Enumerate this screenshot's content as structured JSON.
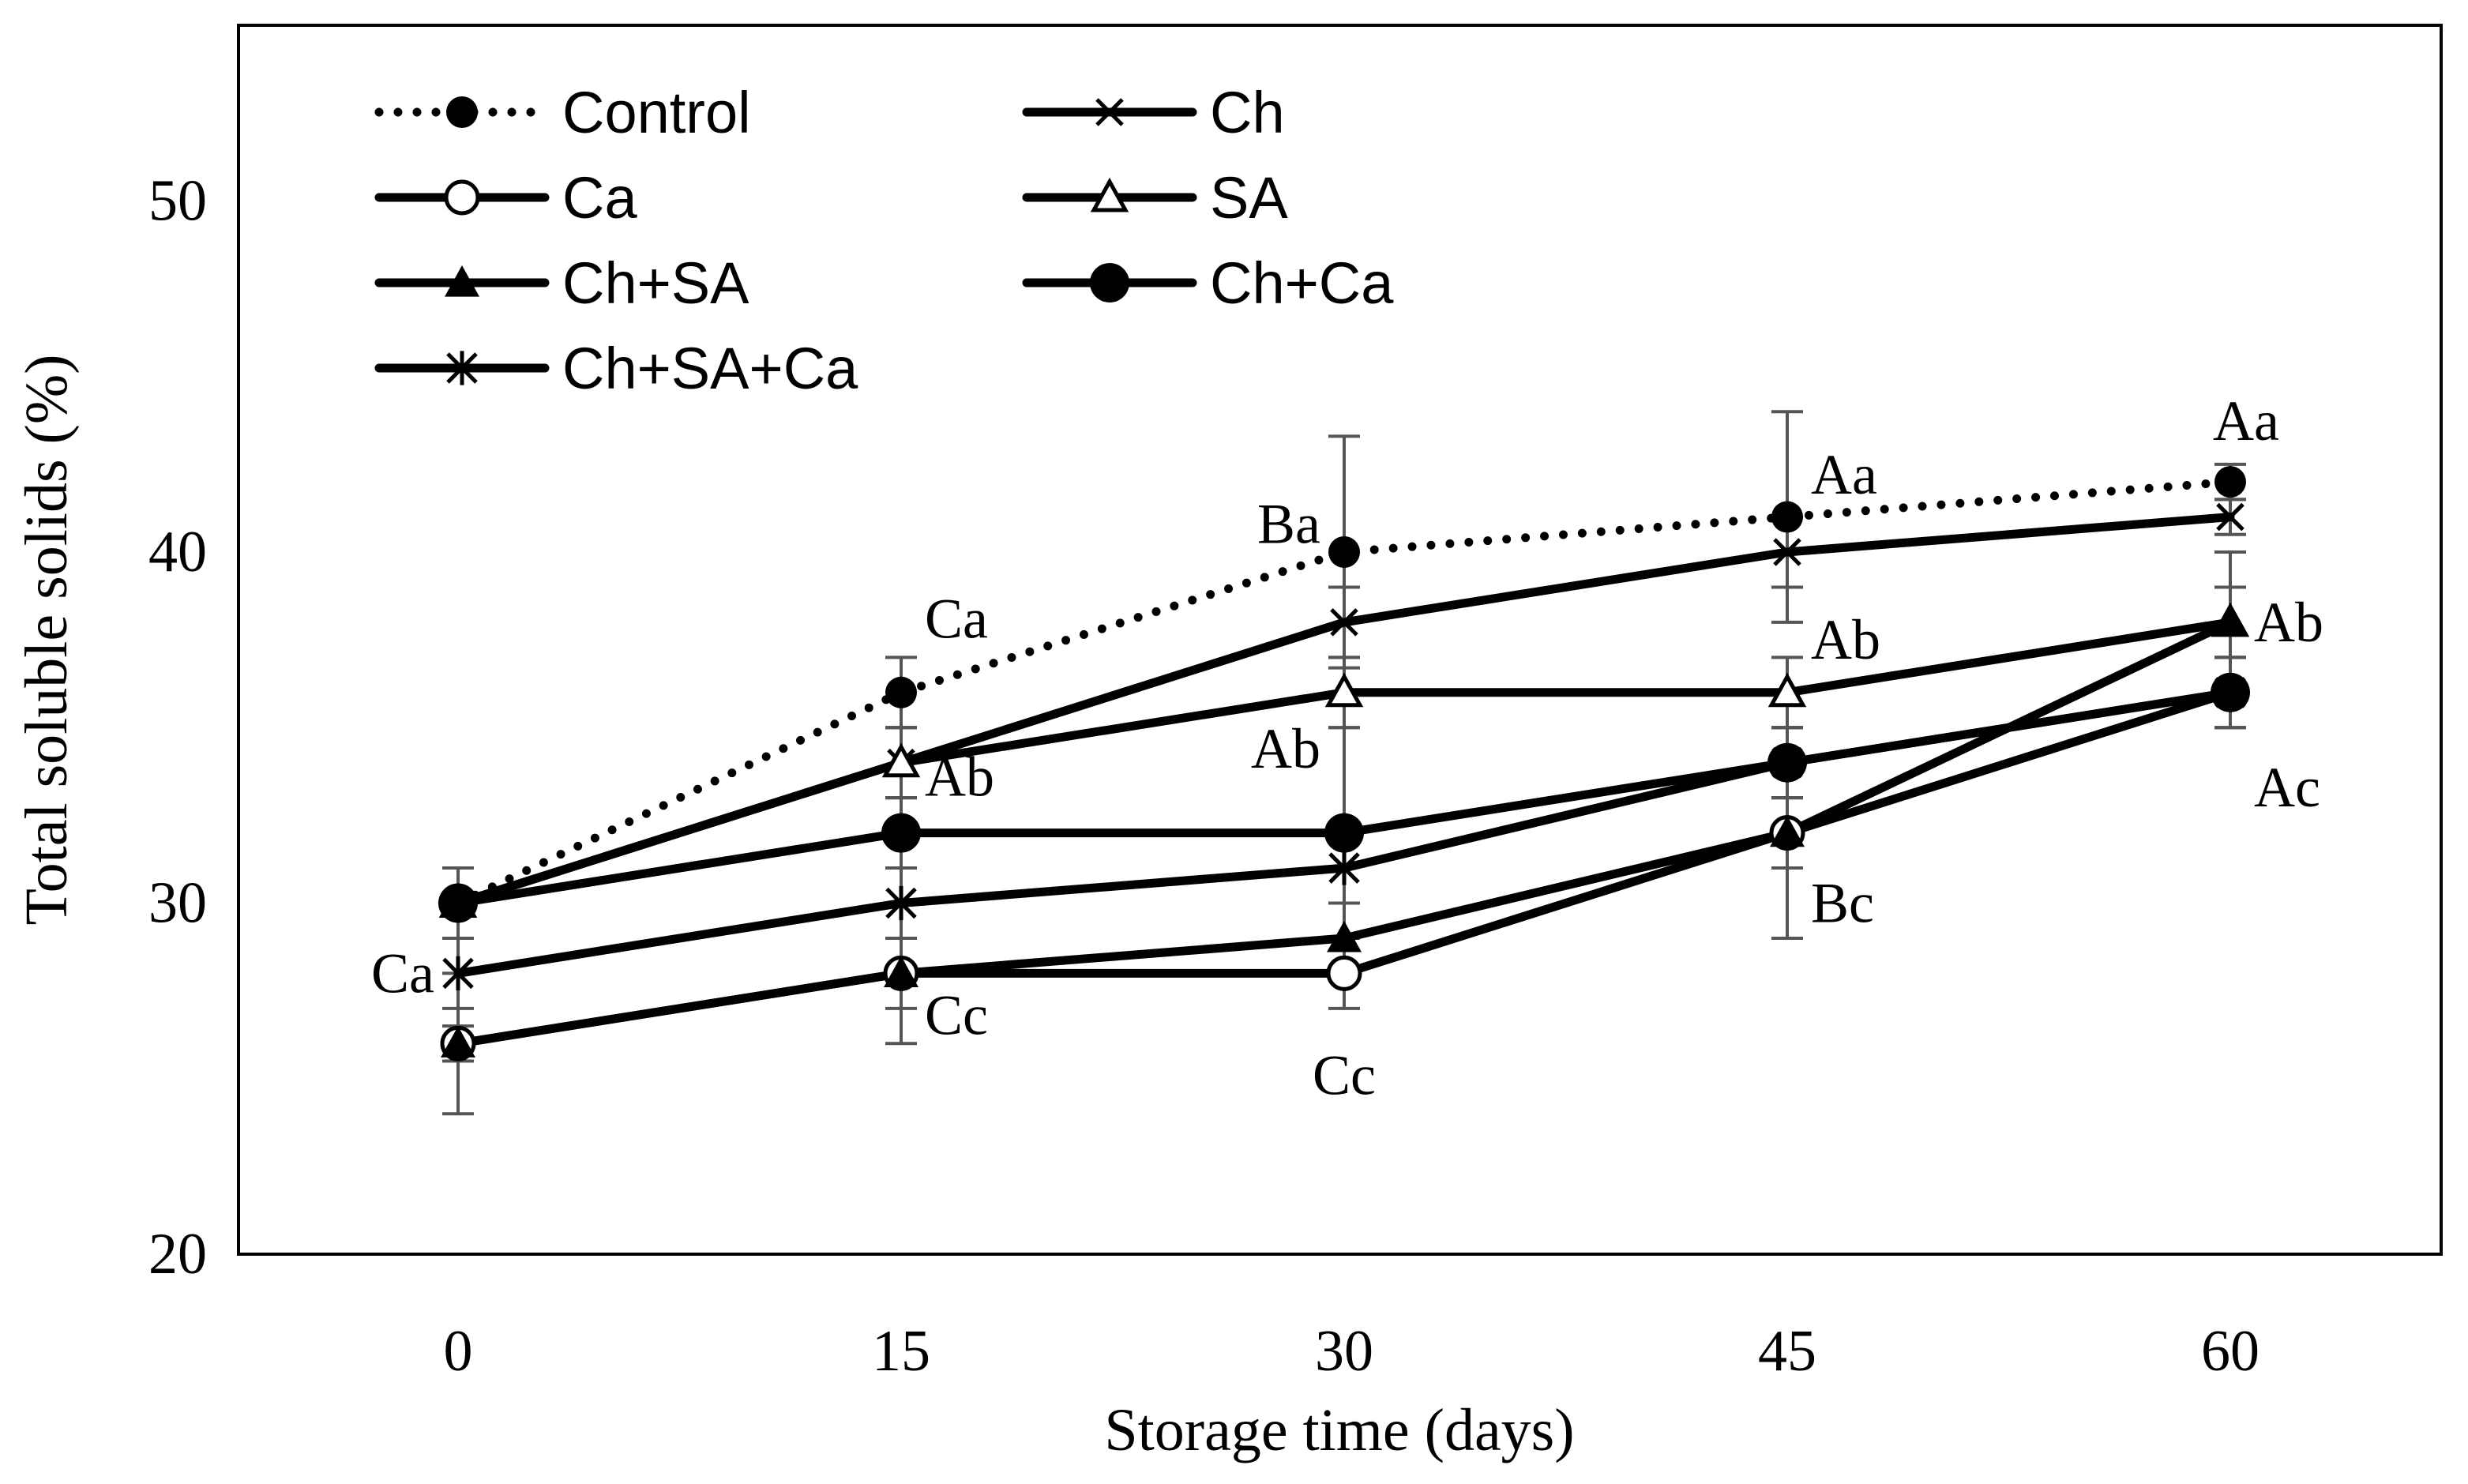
{
  "chart_data": {
    "type": "line",
    "title": "",
    "xlabel": "Storage time (days)",
    "ylabel": "Total soluble solids (%)",
    "x": [
      0,
      15,
      30,
      45,
      60
    ],
    "xticks": [
      "0",
      "15",
      "30",
      "45",
      "60"
    ],
    "ylim": [
      20,
      55
    ],
    "yticks": [
      20,
      30,
      40,
      50
    ],
    "ytick_labels": [
      "20",
      "30",
      "40",
      "50"
    ],
    "grid": false,
    "legend_position": "top-left",
    "series": [
      {
        "name": "Control",
        "values": [
          30,
          36,
          40,
          41,
          42
        ],
        "marker": "circle-filled-small",
        "line": "dotted",
        "errors": [
          1,
          1,
          3.3,
          3,
          0.5
        ]
      },
      {
        "name": "Ch",
        "values": [
          30,
          34,
          38,
          40,
          41
        ],
        "marker": "x",
        "line": "solid",
        "errors": [
          1,
          1,
          1,
          1,
          0.5
        ]
      },
      {
        "name": "Ca",
        "values": [
          26,
          28,
          28,
          32,
          36
        ],
        "marker": "circle-open",
        "line": "solid",
        "errors": [
          0.5,
          1,
          1,
          1,
          1
        ]
      },
      {
        "name": "SA",
        "values": [
          30,
          34,
          36,
          36,
          38
        ],
        "marker": "triangle-open",
        "line": "solid",
        "errors": [
          1,
          1,
          1,
          1,
          1
        ]
      },
      {
        "name": "Ch+SA",
        "values": [
          26,
          28,
          29,
          32,
          38
        ],
        "marker": "triangle-filled",
        "line": "solid",
        "errors": [
          2,
          2,
          1,
          3,
          2
        ]
      },
      {
        "name": "Ch+Ca",
        "values": [
          30,
          32,
          32,
          34,
          36
        ],
        "marker": "circle-filled-large",
        "line": "solid",
        "errors": [
          1,
          1,
          3,
          1,
          1
        ]
      },
      {
        "name": "Ch+SA+Ca",
        "values": [
          28,
          30,
          31,
          34,
          36
        ],
        "marker": "asterisk",
        "line": "solid",
        "errors": [
          1,
          1,
          1,
          1,
          1
        ]
      }
    ],
    "annotations": [
      {
        "text": "Ca",
        "x": 0,
        "y": 28,
        "pos": "left"
      },
      {
        "text": "Ca",
        "x": 15,
        "y": 38.1,
        "pos": "right"
      },
      {
        "text": "Ab",
        "x": 15,
        "y": 33.6,
        "pos": "right"
      },
      {
        "text": "Cc",
        "x": 15,
        "y": 26.8,
        "pos": "right"
      },
      {
        "text": "Ba",
        "x": 30,
        "y": 40.8,
        "pos": "left"
      },
      {
        "text": "Ab",
        "x": 30,
        "y": 34.4,
        "pos": "left"
      },
      {
        "text": "Cc",
        "x": 30,
        "y": 25.9,
        "pos": "below"
      },
      {
        "text": "Aa",
        "x": 45,
        "y": 42.2,
        "pos": "right"
      },
      {
        "text": "Ab",
        "x": 45,
        "y": 37.5,
        "pos": "right"
      },
      {
        "text": "Bc",
        "x": 45,
        "y": 30,
        "pos": "right"
      },
      {
        "text": "Aa",
        "x": 60,
        "y": 43.2,
        "pos": "above"
      },
      {
        "text": "Ab",
        "x": 60,
        "y": 38,
        "pos": "right"
      },
      {
        "text": "Ac",
        "x": 60,
        "y": 33.3,
        "pos": "right"
      }
    ]
  }
}
